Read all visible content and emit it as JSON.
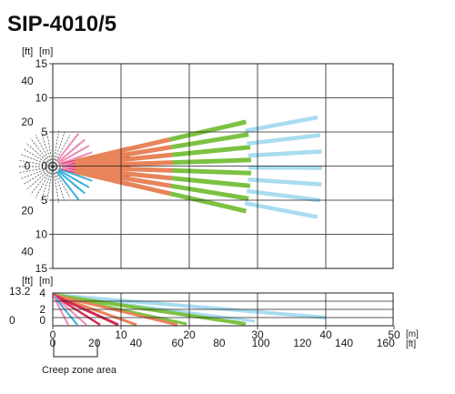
{
  "title": "SIP-4010/5",
  "top_view": {
    "unit_ft": "[ft]",
    "unit_m": "[m]",
    "m_labels": [
      {
        "v": "15",
        "row": 0
      },
      {
        "v": "10",
        "row": 1
      },
      {
        "v": "5",
        "row": 2
      },
      {
        "v": "0",
        "row": 3
      },
      {
        "v": "5",
        "row": 4
      },
      {
        "v": "10",
        "row": 5
      },
      {
        "v": "15",
        "row": 6
      }
    ],
    "ft_labels": [
      {
        "v": "40",
        "at": 0.5
      },
      {
        "v": "20",
        "at": 1.7
      },
      {
        "v": "0",
        "at": 3
      },
      {
        "v": "20",
        "at": 4.3
      },
      {
        "v": "40",
        "at": 5.5
      }
    ]
  },
  "side_view": {
    "unit_ft": "[ft]",
    "unit_m": "[m]",
    "height_ft": "13.2",
    "m_labels": [
      "4",
      "2",
      "0"
    ],
    "ft_labels": [
      "0"
    ]
  },
  "x_axis": {
    "m_unit": "[m]",
    "ft_unit": "[ft]",
    "m_ticks": [
      "0",
      "10",
      "20",
      "30",
      "40",
      "50"
    ],
    "ft_ticks": [
      "0",
      "20",
      "40",
      "60",
      "80",
      "100",
      "120",
      "140",
      "160"
    ]
  },
  "creep_zone_label": "Creep zone area",
  "colors": {
    "green": "#7cc242",
    "light_blue": "#a9dcf0",
    "orange": "#e8845a",
    "red": "#d42a52",
    "pink": "#f08cb8",
    "cyan": "#3ab0e0",
    "gray": "#555555"
  }
}
